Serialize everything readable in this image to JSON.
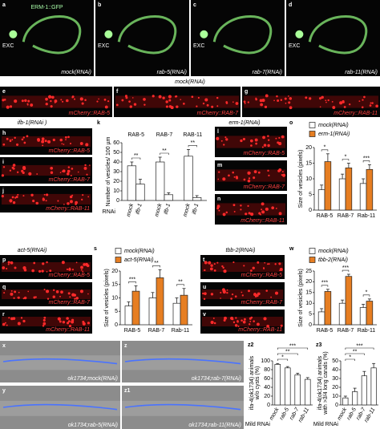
{
  "panels": [
    {
      "label": "a",
      "texts": [
        "ERM-1::GFP",
        "EXC",
        "mock(RNAi)"
      ]
    },
    {
      "label": "b",
      "texts": [
        "EXC",
        "rab-5(RNAi)"
      ]
    },
    {
      "label": "c",
      "texts": [
        "EXC",
        "rab-7(RNAi)"
      ]
    },
    {
      "label": "d",
      "texts": [
        "EXC",
        "rab-11(RNAi)"
      ]
    },
    {
      "label": "e",
      "texts": [
        "mCherry::RAB-5"
      ]
    },
    {
      "label": "f",
      "texts": [
        "mCherry::RAB-7"
      ]
    },
    {
      "label": "g",
      "texts": [
        "mCherry::RAB-11"
      ]
    },
    {
      "label": "h",
      "texts": [
        "mCherry::RAB-5"
      ]
    },
    {
      "label": "i",
      "texts": [
        "mCherry::RAB-7"
      ]
    },
    {
      "label": "j",
      "texts": [
        "mCherry::RAB-11"
      ]
    },
    {
      "label": "l",
      "texts": [
        "mCherry::RAB-5"
      ]
    },
    {
      "label": "m",
      "texts": [
        "mCherry::RAB-7"
      ]
    },
    {
      "label": "n",
      "texts": [
        "mCherry::RAB-11"
      ]
    },
    {
      "label": "p",
      "texts": [
        "mCherry::RAB-5"
      ]
    },
    {
      "label": "q",
      "texts": [
        "mCherry::RAB-7"
      ]
    },
    {
      "label": "r",
      "texts": [
        "mCherry::RAB-11"
      ]
    },
    {
      "label": "t",
      "texts": [
        "mCherry::RAB-5"
      ]
    },
    {
      "label": "u",
      "texts": [
        "mCherry::RAB-7"
      ]
    },
    {
      "label": "v",
      "texts": [
        "mCherry::RAB-11"
      ]
    },
    {
      "label": "x",
      "texts": [
        "ok1734;mock(RNAi)"
      ]
    },
    {
      "label": "y",
      "texts": [
        "ok1734;rab-5(RNAi)"
      ]
    },
    {
      "label": "z",
      "texts": [
        "ok1734;rab-7(RNAi)"
      ]
    },
    {
      "label": "z1",
      "texts": [
        "ok1734;rab-11(RNAi)"
      ]
    }
  ],
  "headings": [
    "mock(RNAi)",
    "ifb-1(RNAi )",
    "erm-1(RNAi)",
    "act-5(RNAi)",
    "tbb-2(RNAi)"
  ],
  "chart_data": [
    {
      "type": "bar",
      "panel": "k",
      "ylabel": [
        "Number of vesicles/ 100 µm"
      ],
      "xlabel": "RNAi",
      "categories": [
        "RAB-5",
        "RAB-7",
        "RAB-11"
      ],
      "series": [
        {
          "name": "mock",
          "color": "#ffffff",
          "values": [
            36,
            40,
            46
          ],
          "errors": [
            4,
            5,
            7
          ]
        },
        {
          "name": "ifb-1",
          "color": "#ffffff",
          "values": [
            17,
            6,
            3
          ],
          "errors": [
            5,
            2,
            2
          ]
        }
      ],
      "significance": [
        "**",
        "**",
        "**"
      ],
      "ylim": [
        0,
        60
      ],
      "yticks": [
        0,
        10,
        20,
        30,
        40,
        50,
        60
      ]
    },
    {
      "type": "bar",
      "panel": "o",
      "ylabel": [
        "Size of vesicles (pixels)"
      ],
      "legend": "top",
      "categories": [
        "RAB-5",
        "RAB-7",
        "Rab-11"
      ],
      "series": [
        {
          "name": "mock(RNAi)",
          "color": "#ffffff",
          "values": [
            6.5,
            10,
            8.5
          ],
          "errors": [
            1.5,
            1.5,
            1.5
          ]
        },
        {
          "name": "erm-1(RNAi)",
          "color": "#e67e22",
          "values": [
            15.5,
            13.5,
            13
          ],
          "errors": [
            2.5,
            1.5,
            1.5
          ]
        }
      ],
      "significance": [
        "*",
        "*",
        "***"
      ],
      "ylim": [
        0,
        20
      ],
      "yticks": [
        0,
        5,
        10,
        15,
        20
      ]
    },
    {
      "type": "bar",
      "panel": "s",
      "ylabel": [
        "Size of vesicles (pixels)"
      ],
      "legend": "top",
      "categories": [
        "RAB-5",
        "RAB-7",
        "Rab-11"
      ],
      "series": [
        {
          "name": "mock(RNAi)",
          "color": "#ffffff",
          "values": [
            7,
            10,
            8
          ],
          "errors": [
            1.5,
            2,
            2
          ]
        },
        {
          "name": "act-5(RNAi)",
          "color": "#e67e22",
          "values": [
            12.5,
            17.5,
            11
          ],
          "errors": [
            2,
            3,
            2.5
          ]
        }
      ],
      "significance": [
        "***",
        "**",
        "**"
      ],
      "ylim": [
        0,
        20
      ],
      "yticks": [
        0,
        5,
        10,
        15,
        20
      ]
    },
    {
      "type": "bar",
      "panel": "w",
      "ylabel": [
        "Size of vesicles (pixels)"
      ],
      "legend": "top",
      "categories": [
        "RAB-5",
        "RAB-7",
        "Rab-11"
      ],
      "series": [
        {
          "name": "mock(RNAi)",
          "color": "#ffffff",
          "values": [
            6,
            10,
            8
          ],
          "errors": [
            1.5,
            1.5,
            1.5
          ]
        },
        {
          "name": "tbb-2(RNAi)",
          "color": "#e67e22",
          "values": [
            15.5,
            22.5,
            11
          ],
          "errors": [
            1,
            1,
            1
          ]
        }
      ],
      "significance": [
        "***",
        "***",
        "*"
      ],
      "ylim": [
        0,
        25
      ],
      "yticks": [
        0,
        5,
        10,
        15,
        20,
        25
      ]
    },
    {
      "type": "bar",
      "panel": "z2",
      "ylabel": [
        "ifa-4(ok1734) animals",
        "w/o cysts (%)"
      ],
      "xlabel": "Mild RNAi",
      "categories": [
        "mock",
        "rab-5",
        "rab-7",
        "rab-11"
      ],
      "color": "#ffffff",
      "values": [
        92,
        84,
        68,
        58
      ],
      "errors": [
        2,
        3,
        4,
        4
      ],
      "significance": [
        "*",
        "**",
        "***"
      ],
      "ylim": [
        0,
        100
      ],
      "yticks": [
        0,
        20,
        40,
        60,
        80,
        100
      ]
    },
    {
      "type": "bar",
      "panel": "z3",
      "ylabel": [
        "ifa-4(ok1734) animals",
        "with >3/4 long canals (%)"
      ],
      "xlabel": "Mild RNAi",
      "categories": [
        "mock",
        "rab-5",
        "rab-7",
        "rab-11"
      ],
      "color": "#ffffff",
      "values": [
        8,
        15,
        33,
        42
      ],
      "errors": [
        2,
        4,
        5,
        5
      ],
      "significance": [
        "*",
        "**",
        "***"
      ],
      "ylim": [
        0,
        50
      ],
      "yticks": [
        0,
        10,
        20,
        30,
        40,
        50
      ]
    }
  ]
}
